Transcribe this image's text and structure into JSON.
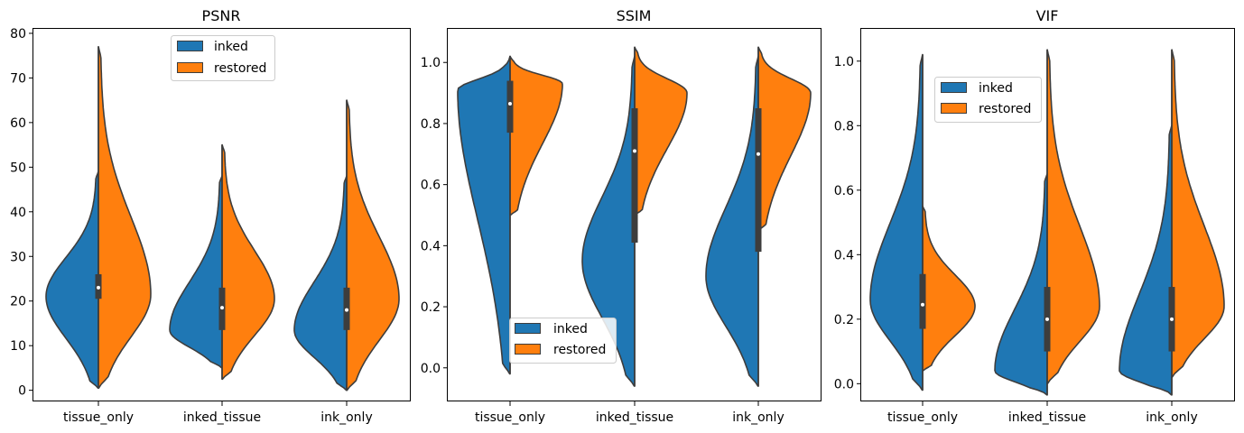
{
  "chart_data": [
    {
      "type": "violin",
      "title": "PSNR",
      "categories": [
        "tissue_only",
        "inked_tissue",
        "ink_only"
      ],
      "ylim": [
        -2.5,
        81
      ],
      "yticks": [
        0,
        10,
        20,
        30,
        40,
        50,
        60,
        70,
        80
      ],
      "yticklabels": [
        "0",
        "10",
        "20",
        "30",
        "40",
        "50",
        "60",
        "70",
        "80"
      ],
      "legend": {
        "location": "upper center",
        "entries": [
          "inked",
          "restored"
        ]
      },
      "series": [
        {
          "name": "inked",
          "color": "#1f77b4",
          "range": [
            [
              0.5,
              49
            ],
            [
              5,
              48
            ],
            [
              0,
              48
            ]
          ],
          "mode": [
            21,
            13.5,
            13.5
          ]
        },
        {
          "name": "restored",
          "color": "#ff7f0e",
          "range": [
            [
              0.5,
              77
            ],
            [
              2.5,
              55
            ],
            [
              0,
              65
            ]
          ],
          "mode": [
            21.5,
            20.5,
            20.5
          ]
        }
      ],
      "box": {
        "median": [
          23,
          18.5,
          18
        ],
        "q1": [
          20.5,
          13.5,
          13.5
        ],
        "q3": [
          26,
          23,
          23
        ]
      }
    },
    {
      "type": "violin",
      "title": "SSIM",
      "categories": [
        "tissue_only",
        "inked_tissue",
        "ink_only"
      ],
      "ylim": [
        -0.11,
        1.11
      ],
      "yticks": [
        0.0,
        0.2,
        0.4,
        0.6,
        0.8,
        1.0
      ],
      "yticklabels": [
        "0.0",
        "0.2",
        "0.4",
        "0.6",
        "0.8",
        "1.0"
      ],
      "legend": {
        "location": "lower center",
        "entries": [
          "inked",
          "restored"
        ]
      },
      "series": [
        {
          "name": "inked",
          "color": "#1f77b4",
          "range": [
            [
              -0.02,
              1.02
            ],
            [
              -0.06,
              1.02
            ],
            [
              -0.06,
              1.02
            ]
          ],
          "mode": [
            0.91,
            0.35,
            0.3
          ]
        },
        {
          "name": "restored",
          "color": "#ff7f0e",
          "range": [
            [
              0.5,
              1.02
            ],
            [
              0.5,
              1.05
            ],
            [
              0.45,
              1.05
            ]
          ],
          "mode": [
            0.93,
            0.9,
            0.9
          ]
        }
      ],
      "box": {
        "median": [
          0.865,
          0.71,
          0.7
        ],
        "q1": [
          0.77,
          0.41,
          0.38
        ],
        "q3": [
          0.94,
          0.85,
          0.85
        ]
      }
    },
    {
      "type": "violin",
      "title": "VIF",
      "categories": [
        "tissue_only",
        "inked_tissue",
        "ink_only"
      ],
      "ylim": [
        -0.055,
        1.1
      ],
      "yticks": [
        0.0,
        0.2,
        0.4,
        0.6,
        0.8,
        1.0
      ],
      "yticklabels": [
        "0.0",
        "0.2",
        "0.4",
        "0.6",
        "0.8",
        "1.0"
      ],
      "legend": {
        "location": "upper center",
        "entries": [
          "inked",
          "restored"
        ]
      },
      "series": [
        {
          "name": "inked",
          "color": "#1f77b4",
          "range": [
            [
              -0.02,
              1.02
            ],
            [
              -0.035,
              0.65
            ],
            [
              -0.035,
              0.8
            ]
          ],
          "mode": [
            0.26,
            0.04,
            0.04
          ]
        },
        {
          "name": "restored",
          "color": "#ff7f0e",
          "range": [
            [
              0.04,
              0.55
            ],
            [
              0.0,
              1.035
            ],
            [
              0.02,
              1.035
            ]
          ],
          "mode": [
            0.24,
            0.24,
            0.24
          ]
        }
      ],
      "box": {
        "median": [
          0.245,
          0.2,
          0.2
        ],
        "q1": [
          0.17,
          0.1,
          0.1
        ],
        "q3": [
          0.34,
          0.3,
          0.3
        ]
      }
    }
  ]
}
